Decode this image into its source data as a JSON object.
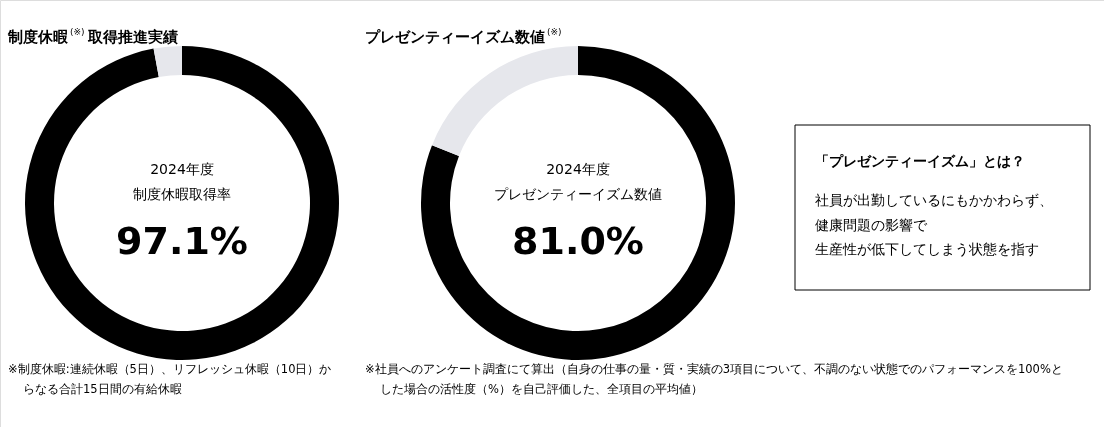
{
  "chart_data": [
    {
      "type": "donut",
      "title": "制度休暇$^{(※)}$取得推進実績",
      "values": [
        97.1,
        2.9
      ],
      "colors": [
        "#000000",
        "#e6e7ec"
      ],
      "value_labels": [
        "97.1%",
        null
      ],
      "annotations": [
        "2024年度",
        "制度休暇取得率",
        "※制度休暇:連続休暇（5日）、リフレッシュ休暇（10日）からなる合計15日間の有給休暇"
      ]
    },
    {
      "type": "donut",
      "title": "プレゼンティーイズム数値$^{(※)}$",
      "values": [
        81.0,
        19.0
      ],
      "colors": [
        "#000000",
        "#e6e7ec"
      ],
      "value_labels": [
        "81.0%",
        null
      ],
      "annotations": [
        "2024年度",
        "プレゼンティーイズム数値",
        "※社員へのアンケート調査にて算出（自身の仕事の量・質・実績の3項目について、不調のない状態でのパフォーマンスを100%とした場合の活性度（%）を自己評価した、全項目の平均値）"
      ]
    },
    {
      "type": "other",
      "title": "「プレゼンティーイズム」とは？",
      "annotations": [
        "社員が出勤しているにもかかわらず、",
        "健康問題の影響で",
        "生産性が低下してしまう状態を指す"
      ]
    }
  ]
}
